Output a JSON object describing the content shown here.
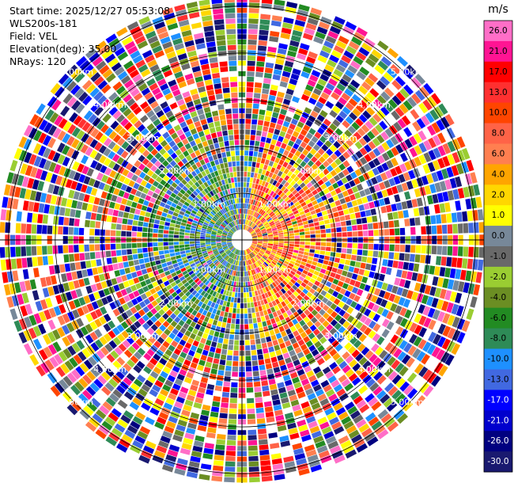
{
  "header": {
    "start_time": "Start time: 2025/12/27 05:53:08",
    "instrument": "WLS200s-181",
    "field": "Field: VEL",
    "elevation": "Elevation(deg): 35.00",
    "nrays": "NRays: 120"
  },
  "range_labels": {
    "ring1": "1.00km",
    "ring2": "2.00km",
    "ring3": "3.00km",
    "ring4": "4.00km",
    "ring5": "5.00km"
  },
  "colorbar": {
    "unit": "m/s",
    "ticks": [
      "26.0",
      "21.0",
      "17.0",
      "13.0",
      "10.0",
      "8.0",
      "6.0",
      "4.0",
      "2.0",
      "1.0",
      "0.0",
      "-1.0",
      "-2.0",
      "-4.0",
      "-6.0",
      "-8.0",
      "-10.0",
      "-13.0",
      "-17.0",
      "-21.0",
      "-26.0",
      "-30.0"
    ],
    "colors": [
      "#ff6ec7",
      "#ff1493",
      "#ff0000",
      "#ff3030",
      "#ff4500",
      "#ff6347",
      "#ff7f50",
      "#ffa500",
      "#ffd700",
      "#ffff00",
      "#778899",
      "#696969",
      "#9acd32",
      "#6b8e23",
      "#228b22",
      "#2e8b57",
      "#1e90ff",
      "#4169e1",
      "#0000ff",
      "#0000cd",
      "#000080",
      "#191970"
    ]
  },
  "chart_data": {
    "type": "heatmap",
    "title": "",
    "xlabel": "",
    "ylabel": "",
    "projection": "polar (PPI)",
    "nrays": 120,
    "range_rings_km": [
      1,
      2,
      3,
      4,
      5
    ],
    "max_range_km": 5.2,
    "value_range": [
      -30.0,
      26.0
    ],
    "pattern": "near range: positive (warm) velocities to the east, negative (cool) to the west; beyond ~2.5 km values are noisy across the full scale"
  }
}
